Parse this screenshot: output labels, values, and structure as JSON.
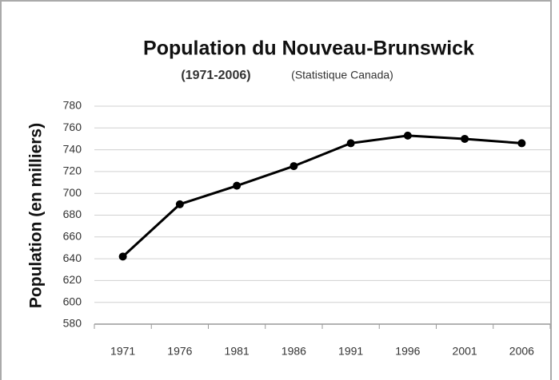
{
  "chart_data": {
    "type": "line",
    "title": "Population du Nouveau-Brunswick",
    "subtitle": "(1971-2006)",
    "source": "(Statistique Canada)",
    "y_label": "Population (en milliers)",
    "categories": [
      "1971",
      "1976",
      "1981",
      "1986",
      "1991",
      "1996",
      "2001",
      "2006"
    ],
    "series": [
      {
        "name": "Population",
        "color": "#000000",
        "values": [
          642,
          690,
          707,
          725,
          746,
          753,
          750,
          746
        ]
      }
    ],
    "ylim": [
      580,
      780
    ],
    "yticks": [
      580,
      600,
      620,
      640,
      660,
      680,
      700,
      720,
      740,
      760,
      780
    ],
    "grid": true
  }
}
